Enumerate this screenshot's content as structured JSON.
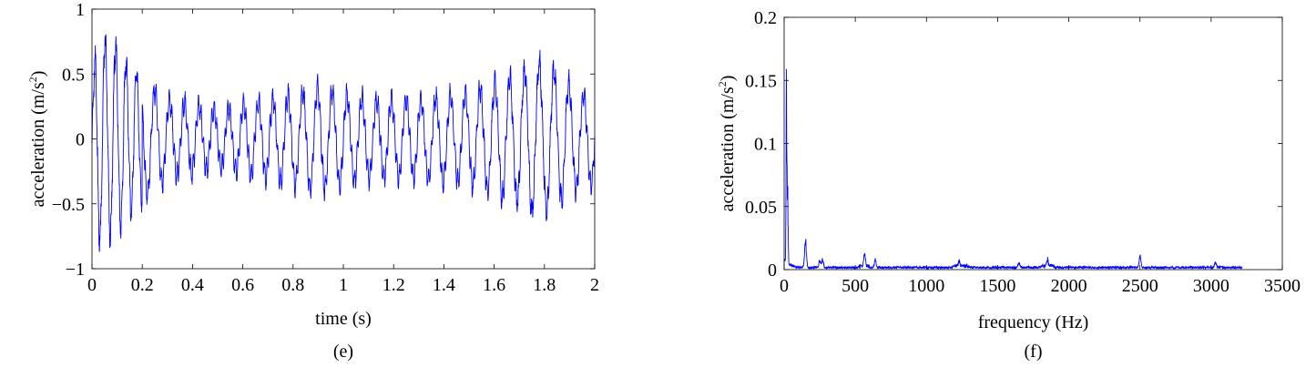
{
  "chart_data": [
    {
      "type": "line",
      "panel_label": "(e)",
      "xlabel": "time (s)",
      "ylabel": "acceleration (m/s",
      "ylabel_sup": "2",
      "ylabel_close": ")",
      "xlim": [
        0,
        2
      ],
      "ylim": [
        -1,
        1
      ],
      "xticks": [
        "0",
        "0.2",
        "0.4",
        "0.6",
        "0.8",
        "1",
        "1.2",
        "1.4",
        "1.6",
        "1.8",
        "2"
      ],
      "xtick_values": [
        0,
        0.2,
        0.4,
        0.6,
        0.8,
        1,
        1.2,
        1.4,
        1.6,
        1.8,
        2
      ],
      "yticks": [
        "−1",
        "−0.5",
        "0",
        "0.5",
        "1"
      ],
      "ytick_values": [
        -1,
        -0.5,
        0,
        0.5,
        1
      ],
      "series_color": "#0000ff",
      "dominant_frequency_hz": 17,
      "envelope": {
        "t": [
          0,
          0.02,
          0.1,
          0.2,
          0.3,
          0.5,
          0.7,
          0.9,
          1.1,
          1.3,
          1.5,
          1.7,
          1.78,
          1.85,
          1.95,
          2.0
        ],
        "amplitude": [
          0.3,
          0.8,
          0.7,
          0.45,
          0.3,
          0.22,
          0.3,
          0.4,
          0.3,
          0.3,
          0.35,
          0.5,
          0.6,
          0.5,
          0.35,
          0.35
        ]
      }
    },
    {
      "type": "line",
      "panel_label": "(f)",
      "xlabel": "frequency (Hz)",
      "ylabel": "acceleration (m/s",
      "ylabel_sup": "2",
      "ylabel_close": ")",
      "xlim": [
        0,
        3500
      ],
      "ylim": [
        0,
        0.2
      ],
      "xticks": [
        "0",
        "500",
        "1000",
        "1500",
        "2000",
        "2500",
        "3000",
        "3500"
      ],
      "xtick_values": [
        0,
        500,
        1000,
        1500,
        2000,
        2500,
        3000,
        3500
      ],
      "yticks": [
        "0",
        "0.05",
        "0.1",
        "0.15",
        "0.2"
      ],
      "ytick_values": [
        0,
        0.05,
        0.1,
        0.15,
        0.2
      ],
      "series_color": "#0000ff",
      "max_frequency": 3220,
      "noise_floor": 0.002,
      "peaks": [
        {
          "f": 17,
          "a": 0.165
        },
        {
          "f": 25,
          "a": 0.062
        },
        {
          "f": 150,
          "a": 0.027
        },
        {
          "f": 250,
          "a": 0.007
        },
        {
          "f": 270,
          "a": 0.008
        },
        {
          "f": 565,
          "a": 0.012
        },
        {
          "f": 640,
          "a": 0.007
        },
        {
          "f": 1230,
          "a": 0.005
        },
        {
          "f": 1650,
          "a": 0.005
        },
        {
          "f": 1850,
          "a": 0.007
        },
        {
          "f": 2500,
          "a": 0.012
        },
        {
          "f": 3030,
          "a": 0.005
        }
      ]
    }
  ]
}
